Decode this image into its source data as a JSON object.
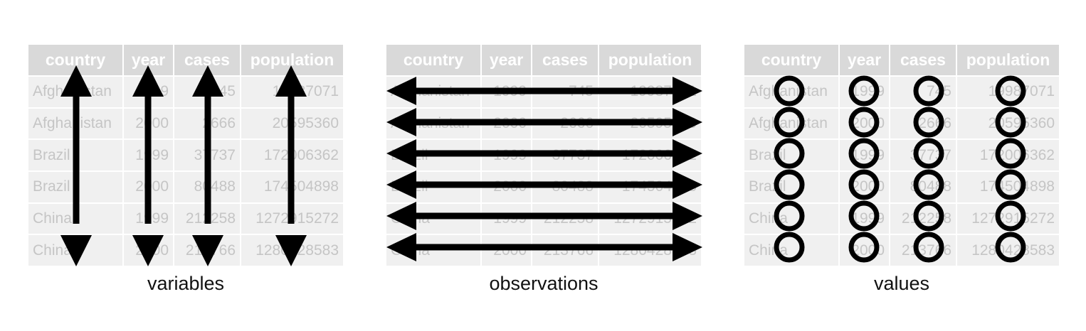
{
  "table": {
    "columns": [
      "country",
      "year",
      "cases",
      "population"
    ],
    "rows": [
      [
        "Afghanistan",
        "1999",
        "745",
        "19987071"
      ],
      [
        "Afghanistan",
        "2000",
        "2666",
        "20595360"
      ],
      [
        "Brazil",
        "1999",
        "37737",
        "172006362"
      ],
      [
        "Brazil",
        "2000",
        "80488",
        "174504898"
      ],
      [
        "China",
        "1999",
        "212258",
        "1272915272"
      ],
      [
        "China",
        "2000",
        "213766",
        "1280428583"
      ]
    ]
  },
  "panels": {
    "variables": {
      "caption": "variables"
    },
    "observations": {
      "caption": "observations"
    },
    "values": {
      "caption": "values"
    }
  },
  "colors": {
    "header_bg": "#d9d9d9",
    "cell_bg": "#f0f0f0",
    "cell_text": "#c5c5c5",
    "mark": "#000000"
  }
}
